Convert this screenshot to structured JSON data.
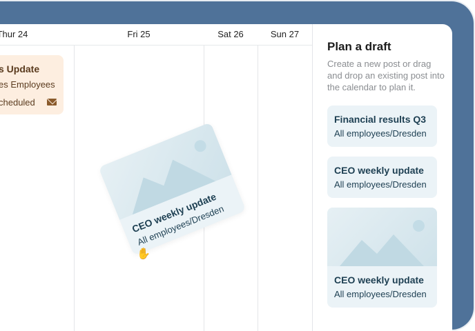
{
  "calendar": {
    "days": [
      "Thur 24",
      "Fri 25",
      "Sat 26",
      "Sun 27"
    ],
    "event": {
      "title": "s Update",
      "audience": "es Employees",
      "status": "cheduled",
      "icon": "mail-icon",
      "color": "#fdeee0"
    }
  },
  "dragged_card": {
    "title": "CEO weekly update",
    "audience": "All employees/Dresden"
  },
  "panel": {
    "title": "Plan a draft",
    "description": "Create a new post or drag and drop an existing post into the calendar to plan it.",
    "drafts": [
      {
        "title": "Financial results Q3",
        "audience": "All employees/Dresden"
      },
      {
        "title": "CEO weekly update",
        "audience": "All employees/Dresden"
      },
      {
        "title": "CEO weekly update",
        "audience": "All employees/Dresden",
        "has_image": true
      }
    ]
  },
  "colors": {
    "background": "#4f7299",
    "card": "#ebf3f7"
  }
}
